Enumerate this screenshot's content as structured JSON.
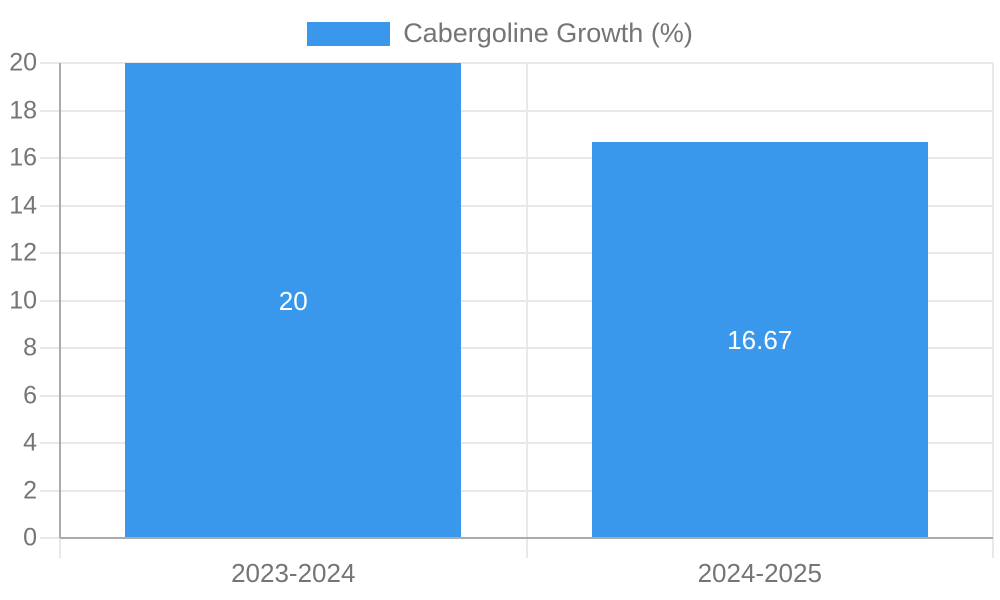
{
  "chart_data": {
    "type": "bar",
    "title": "",
    "legend": "Cabergoline Growth (%)",
    "categories": [
      "2023-2024",
      "2024-2025"
    ],
    "values": [
      20,
      16.67
    ],
    "value_labels": [
      "20",
      "16.67"
    ],
    "xlabel": "",
    "ylabel": "",
    "ylim": [
      0,
      20
    ],
    "ytick_step": 2,
    "yticks": [
      0,
      2,
      4,
      6,
      8,
      10,
      12,
      14,
      16,
      18,
      20
    ],
    "grid": true,
    "legend_position": "top",
    "colors": {
      "bar": "#3998eb",
      "grid": "#e8e8e8",
      "axis": "#ababab",
      "text": "#757575",
      "data_label": "#ffffff",
      "background": "#ffffff"
    }
  }
}
